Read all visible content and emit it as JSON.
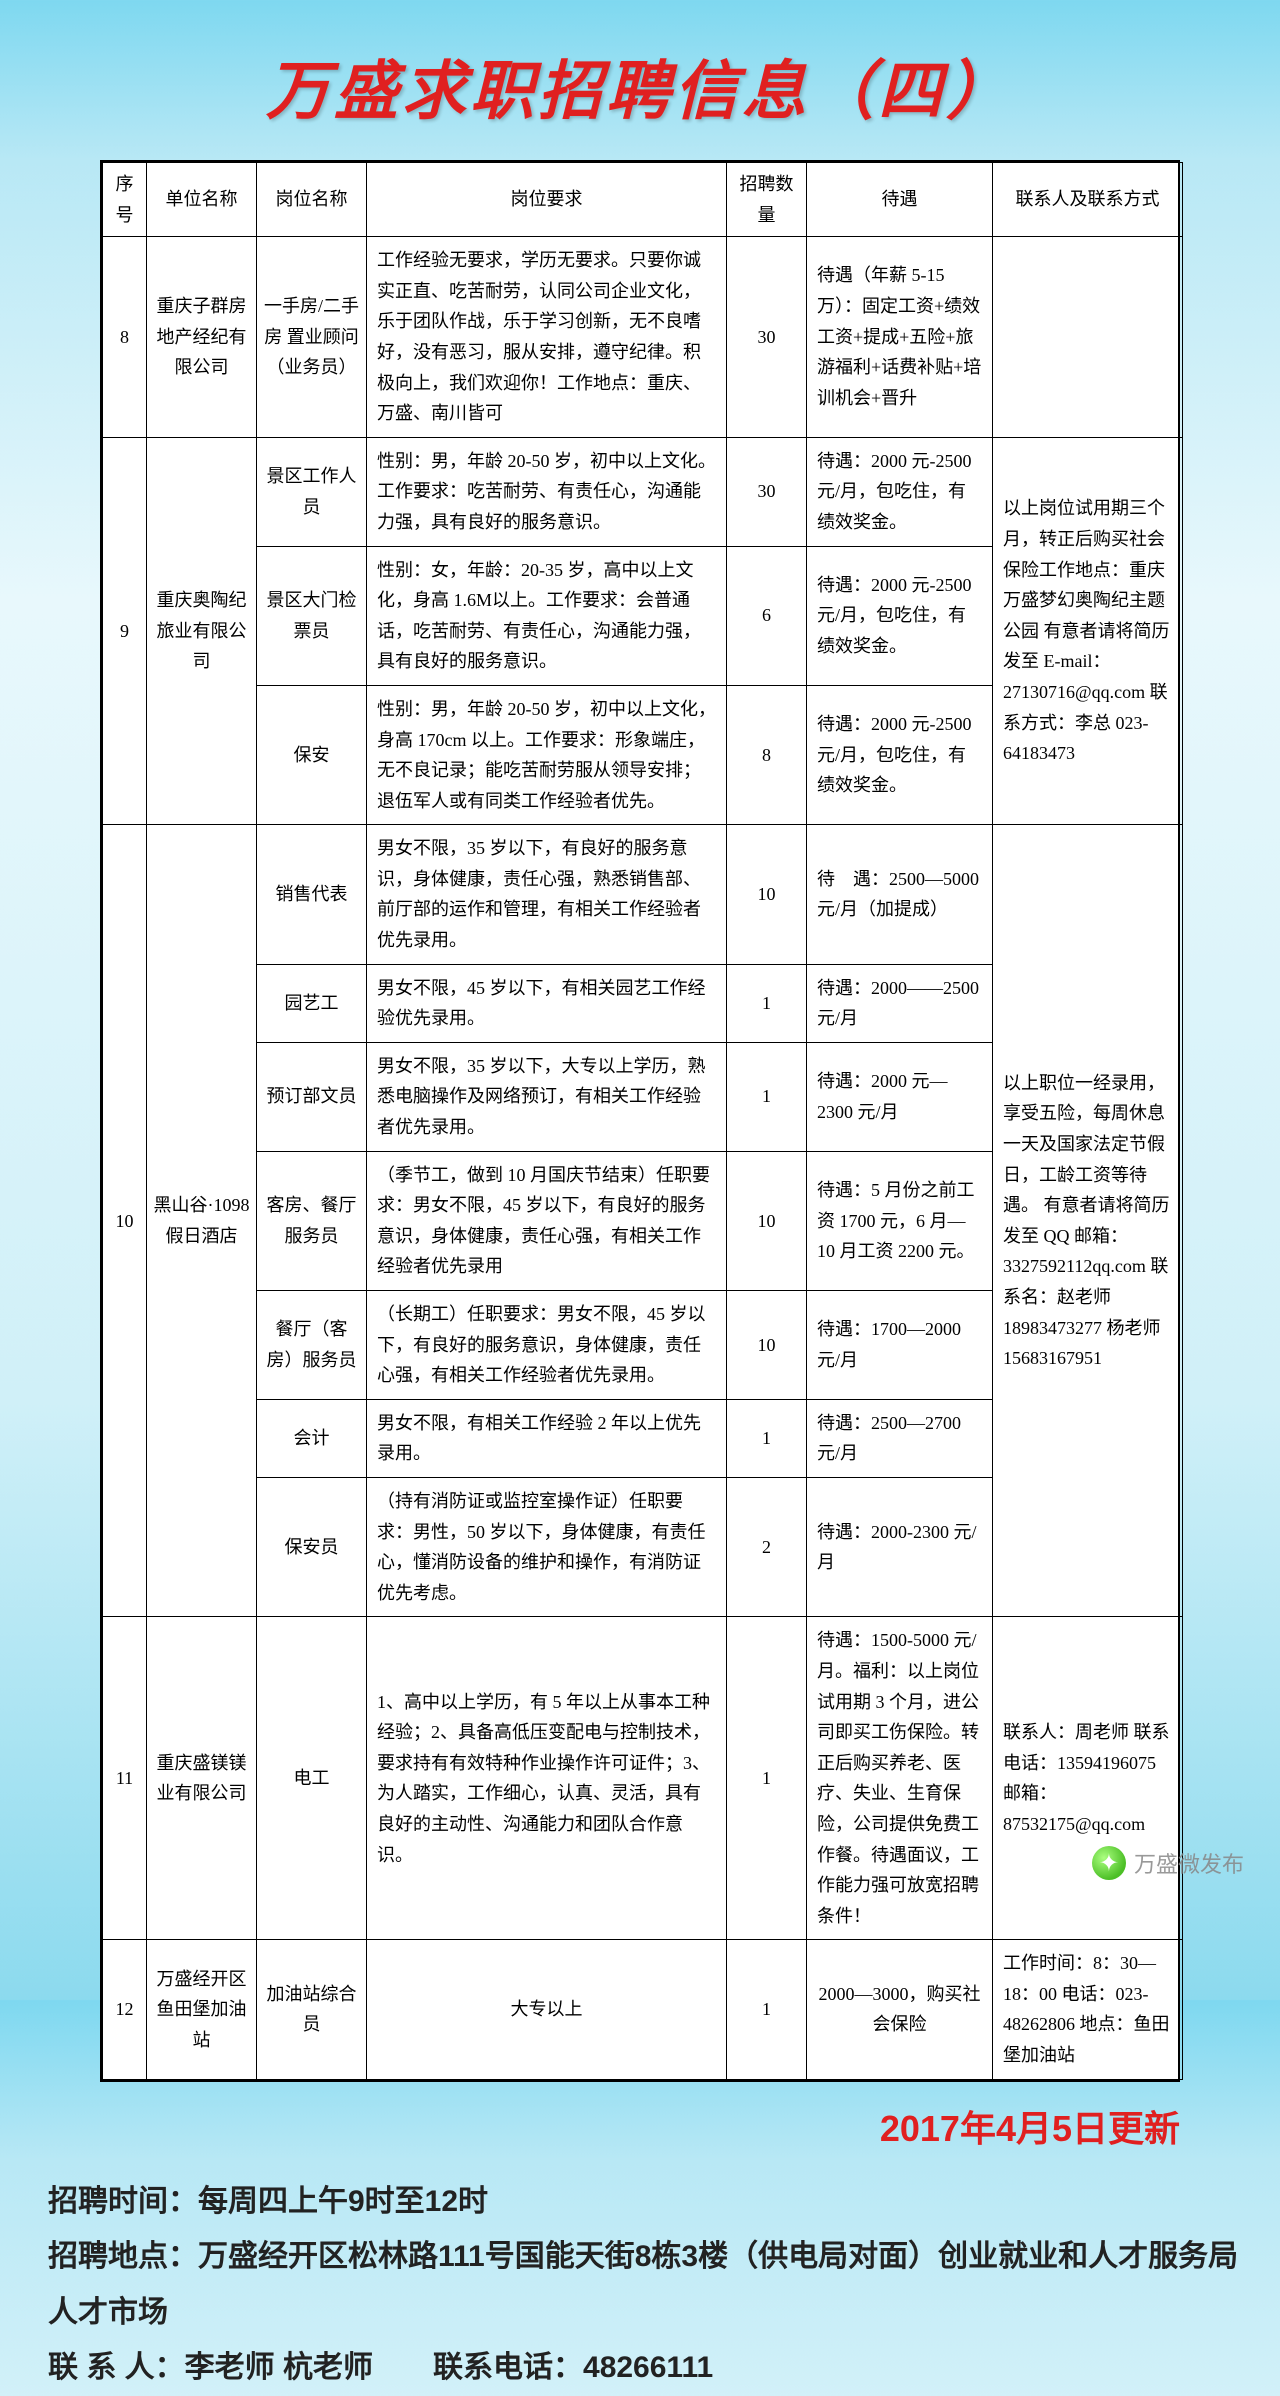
{
  "title": "万盛求职招聘信息（四）",
  "headers": [
    "序号",
    "单位名称",
    "岗位名称",
    "岗位要求",
    "招聘数量",
    "待遇",
    "联系人及联系方式"
  ],
  "rows": [
    {
      "num": "8",
      "unit": "重庆子群房地产经纪有限公司",
      "position": "一手房/二手房 置业顾问（业务员）",
      "requirement": "工作经验无要求，学历无要求。只要你诚实正直、吃苦耐劳，认同公司企业文化，乐于团队作战，乐于学习创新，无不良嗜好，没有恶习，服从安排，遵守纪律。积极向上，我们欢迎你！工作地点：重庆、万盛、南川皆可",
      "qty": "30",
      "treatment": "待遇（年薪 5-15 万）：固定工资+绩效工资+提成+五险+旅游福利+话费补贴+培训机会+晋升",
      "contact": ""
    },
    {
      "num": "9",
      "unit": "重庆奥陶纪旅业有限公司",
      "positions": [
        {
          "position": "景区工作人员",
          "requirement": "性别：男，年龄 20-50 岁，初中以上文化。工作要求：吃苦耐劳、有责任心，沟通能力强，具有良好的服务意识。",
          "qty": "30",
          "treatment": "待遇：2000 元-2500 元/月，包吃住，有绩效奖金。"
        },
        {
          "position": "景区大门检票员",
          "requirement": "性别：女，年龄：20-35 岁，高中以上文化，身高 1.6M以上。工作要求：会普通话，吃苦耐劳、有责任心，沟通能力强，具有良好的服务意识。",
          "qty": "6",
          "treatment": "待遇：2000 元-2500 元/月，包吃住，有绩效奖金。"
        },
        {
          "position": "保安",
          "requirement": "性别：男，年龄 20-50 岁，初中以上文化，身高 170cm 以上。工作要求：形象端庄，无不良记录；能吃苦耐劳服从领导安排；退伍军人或有同类工作经验者优先。",
          "qty": "8",
          "treatment": "待遇：2000 元-2500 元/月，包吃住，有绩效奖金。"
        }
      ],
      "contact": "以上岗位试用期三个月，转正后购买社会保险工作地点：重庆万盛梦幻奥陶纪主题公园 有意者请将简历发至 E-mail：27130716@qq.com  联系方式：李总 023-64183473"
    },
    {
      "num": "10",
      "unit": "黑山谷·1098 假日酒店",
      "positions": [
        {
          "position": "销售代表",
          "requirement": "男女不限，35 岁以下，有良好的服务意识，身体健康，责任心强，熟悉销售部、前厅部的运作和管理，有相关工作经验者优先录用。",
          "qty": "10",
          "treatment": "待　遇：2500—5000 元/月（加提成）"
        },
        {
          "position": "园艺工",
          "requirement": "男女不限，45 岁以下，有相关园艺工作经验优先录用。",
          "qty": "1",
          "treatment": "待遇：2000——2500 元/月"
        },
        {
          "position": "预订部文员",
          "requirement": "男女不限，35 岁以下，大专以上学历，熟悉电脑操作及网络预订，有相关工作经验者优先录用。",
          "qty": "1",
          "treatment": "待遇：2000 元—2300 元/月"
        },
        {
          "position": "客房、餐厅服务员",
          "requirement": "（季节工，做到 10 月国庆节结束）任职要求：男女不限，45 岁以下，有良好的服务意识，身体健康，责任心强，有相关工作经验者优先录用",
          "qty": "10",
          "treatment": "待遇：5 月份之前工资 1700 元，6 月—10 月工资 2200 元。"
        },
        {
          "position": "餐厅（客房）服务员",
          "requirement": "（长期工）任职要求：男女不限，45 岁以下，有良好的服务意识，身体健康，责任心强，有相关工作经验者优先录用。",
          "qty": "10",
          "treatment": "待遇：1700—2000 元/月"
        },
        {
          "position": "会计",
          "requirement": "男女不限，有相关工作经验 2 年以上优先录用。",
          "qty": "1",
          "treatment": "待遇：2500—2700 元/月"
        },
        {
          "position": "保安员",
          "requirement": "（持有消防证或监控室操作证）任职要求：男性，50 岁以下，身体健康，有责任心，懂消防设备的维护和操作，有消防证优先考虑。",
          "qty": "2",
          "treatment": "待遇：2000-2300 元/月"
        }
      ],
      "contact": "以上职位一经录用，享受五险，每周休息一天及国家法定节假日，工龄工资等待遇。 有意者请将简历发至 QQ 邮箱：3327592112qq.com  联系名：赵老师 18983473277  杨老师 15683167951"
    },
    {
      "num": "11",
      "unit": "重庆盛镁镁业有限公司",
      "position": "电工",
      "requirement": "1、高中以上学历，有 5 年以上从事本工种经验；2、具备高低压变配电与控制技术，要求持有有效特种作业操作许可证件；3、为人踏实，工作细心，认真、灵活，具有良好的主动性、沟通能力和团队合作意识。",
      "qty": "1",
      "treatment": "待遇：1500-5000 元/月。福利：以上岗位试用期 3 个月，进公司即买工伤保险。转正后购买养老、医疗、失业、生育保险，公司提供免费工作餐。待遇面议，工作能力强可放宽招聘条件！",
      "contact": "联系人：周老师  联系电话：13594196075  邮箱：87532175@qq.com"
    },
    {
      "num": "12",
      "unit": "万盛经开区鱼田堡加油站",
      "position": "加油站综合员",
      "requirement": "大专以上",
      "qty": "1",
      "treatment": "2000—3000，购买社会保险",
      "contact": "工作时间：8：30—18：00 电话：023-48262806 地点：鱼田堡加油站"
    }
  ],
  "update_date": "2017年4月5日更新",
  "footer": {
    "time": "招聘时间：每周四上午9时至12时",
    "place": "招聘地点：万盛经开区松林路111号国能天街8栋3楼（供电局对面）创业就业和人才服务局人才市场",
    "contact": "联 系 人：李老师 杭老师　　联系电话：48266111"
  },
  "watermark": "万盛微发布"
}
